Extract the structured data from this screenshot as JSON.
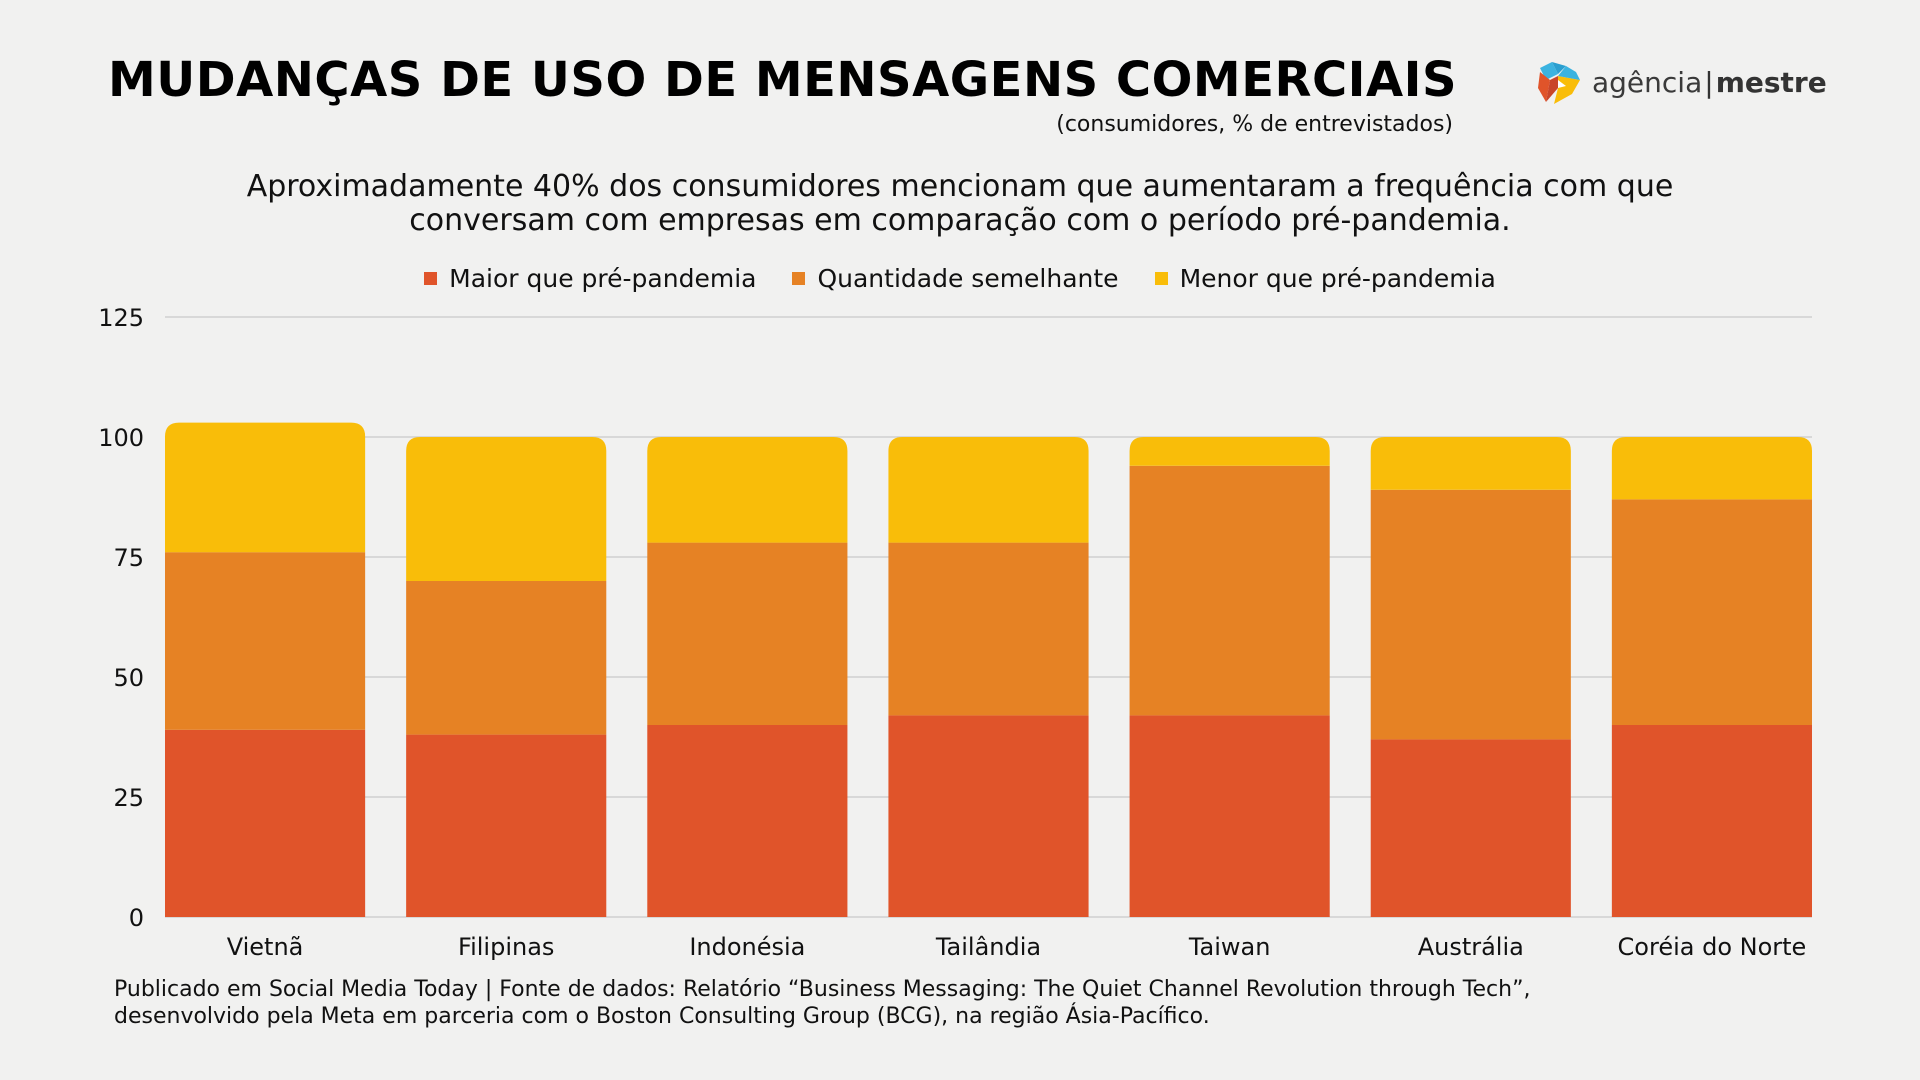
{
  "header": {
    "title": "MUDANÇAS DE USO DE MENSAGENS COMERCIAIS",
    "subtitle": "(consumidores, % de entrevistados)",
    "headline_line1": "Aproximadamente 40% dos consumidores mencionam que aumentaram a frequência com que",
    "headline_line2": "conversam com empresas em comparação com o período pré-pandemia."
  },
  "logo": {
    "icon": "agencia-mestre-logo-icon",
    "text_light": "agência",
    "separator": "|",
    "text_bold": "mestre"
  },
  "colors": {
    "maior": "#e0542a",
    "semelhante": "#e68224",
    "menor": "#f9bd09",
    "grid": "#cfcfcf",
    "background": "#f1f1f0"
  },
  "chart_data": {
    "type": "bar",
    "stacked": true,
    "title": "MUDANÇAS DE USO DE MENSAGENS COMERCIAIS",
    "subtitle": "(consumidores, % de entrevistados)",
    "xlabel": "",
    "ylabel": "",
    "ylim": [
      0,
      125
    ],
    "yticks": [
      0,
      25,
      50,
      75,
      100,
      125
    ],
    "grid": true,
    "legend_position": "top-center",
    "categories": [
      "Vietnã",
      "Filipinas",
      "Indonésia",
      "Tailândia",
      "Taiwan",
      "Austrália",
      "Coréia do Norte"
    ],
    "series": [
      {
        "name": "Maior que pré-pandemia",
        "color": "#e0542a",
        "values": [
          39,
          38,
          40,
          42,
          42,
          37,
          40
        ]
      },
      {
        "name": "Quantidade semelhante",
        "color": "#e68224",
        "values": [
          37,
          32,
          38,
          36,
          52,
          52,
          47
        ]
      },
      {
        "name": "Menor que pré-pandemia",
        "color": "#f9bd09",
        "values": [
          27,
          30,
          22,
          22,
          6,
          11,
          13
        ]
      }
    ]
  },
  "footer": {
    "line1": "Publicado em Social Media Today | Fonte de dados: Relatório “Business Messaging: The Quiet Channel Revolution through Tech”,",
    "line2": "desenvolvido pela Meta em parceria com o Boston Consulting Group (BCG), na região Ásia-Pacífico."
  }
}
